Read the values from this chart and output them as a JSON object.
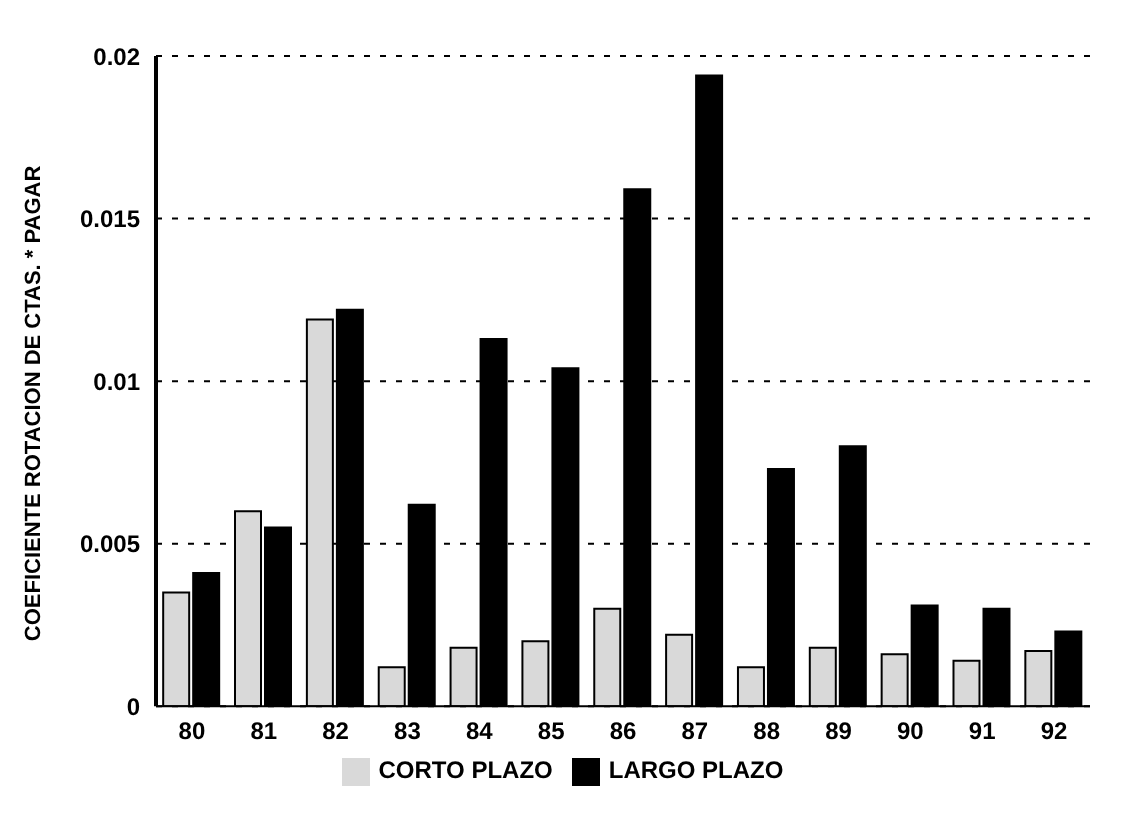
{
  "chart_data": {
    "type": "bar",
    "ylabel": "COEFICIENTE ROTACION DE CTAS. * PAGAR",
    "categories": [
      "80",
      "81",
      "82",
      "83",
      "84",
      "85",
      "86",
      "87",
      "88",
      "89",
      "90",
      "91",
      "92"
    ],
    "series": [
      {
        "name": "CORTO PLAZO",
        "color": "#d9d9d9",
        "values": [
          0.0035,
          0.006,
          0.0119,
          0.0012,
          0.0018,
          0.002,
          0.003,
          0.0022,
          0.0012,
          0.0018,
          0.0016,
          0.0014,
          0.0017
        ]
      },
      {
        "name": "LARGO PLAZO",
        "color": "#000000",
        "values": [
          0.0041,
          0.0055,
          0.0122,
          0.0062,
          0.0113,
          0.0104,
          0.0159,
          0.0194,
          0.0073,
          0.008,
          0.0031,
          0.003,
          0.0023
        ]
      }
    ],
    "ylim": [
      0,
      0.02
    ],
    "yticks": [
      0,
      0.005,
      0.01,
      0.015,
      0.02
    ],
    "grid": "y",
    "legend": "bottom"
  }
}
